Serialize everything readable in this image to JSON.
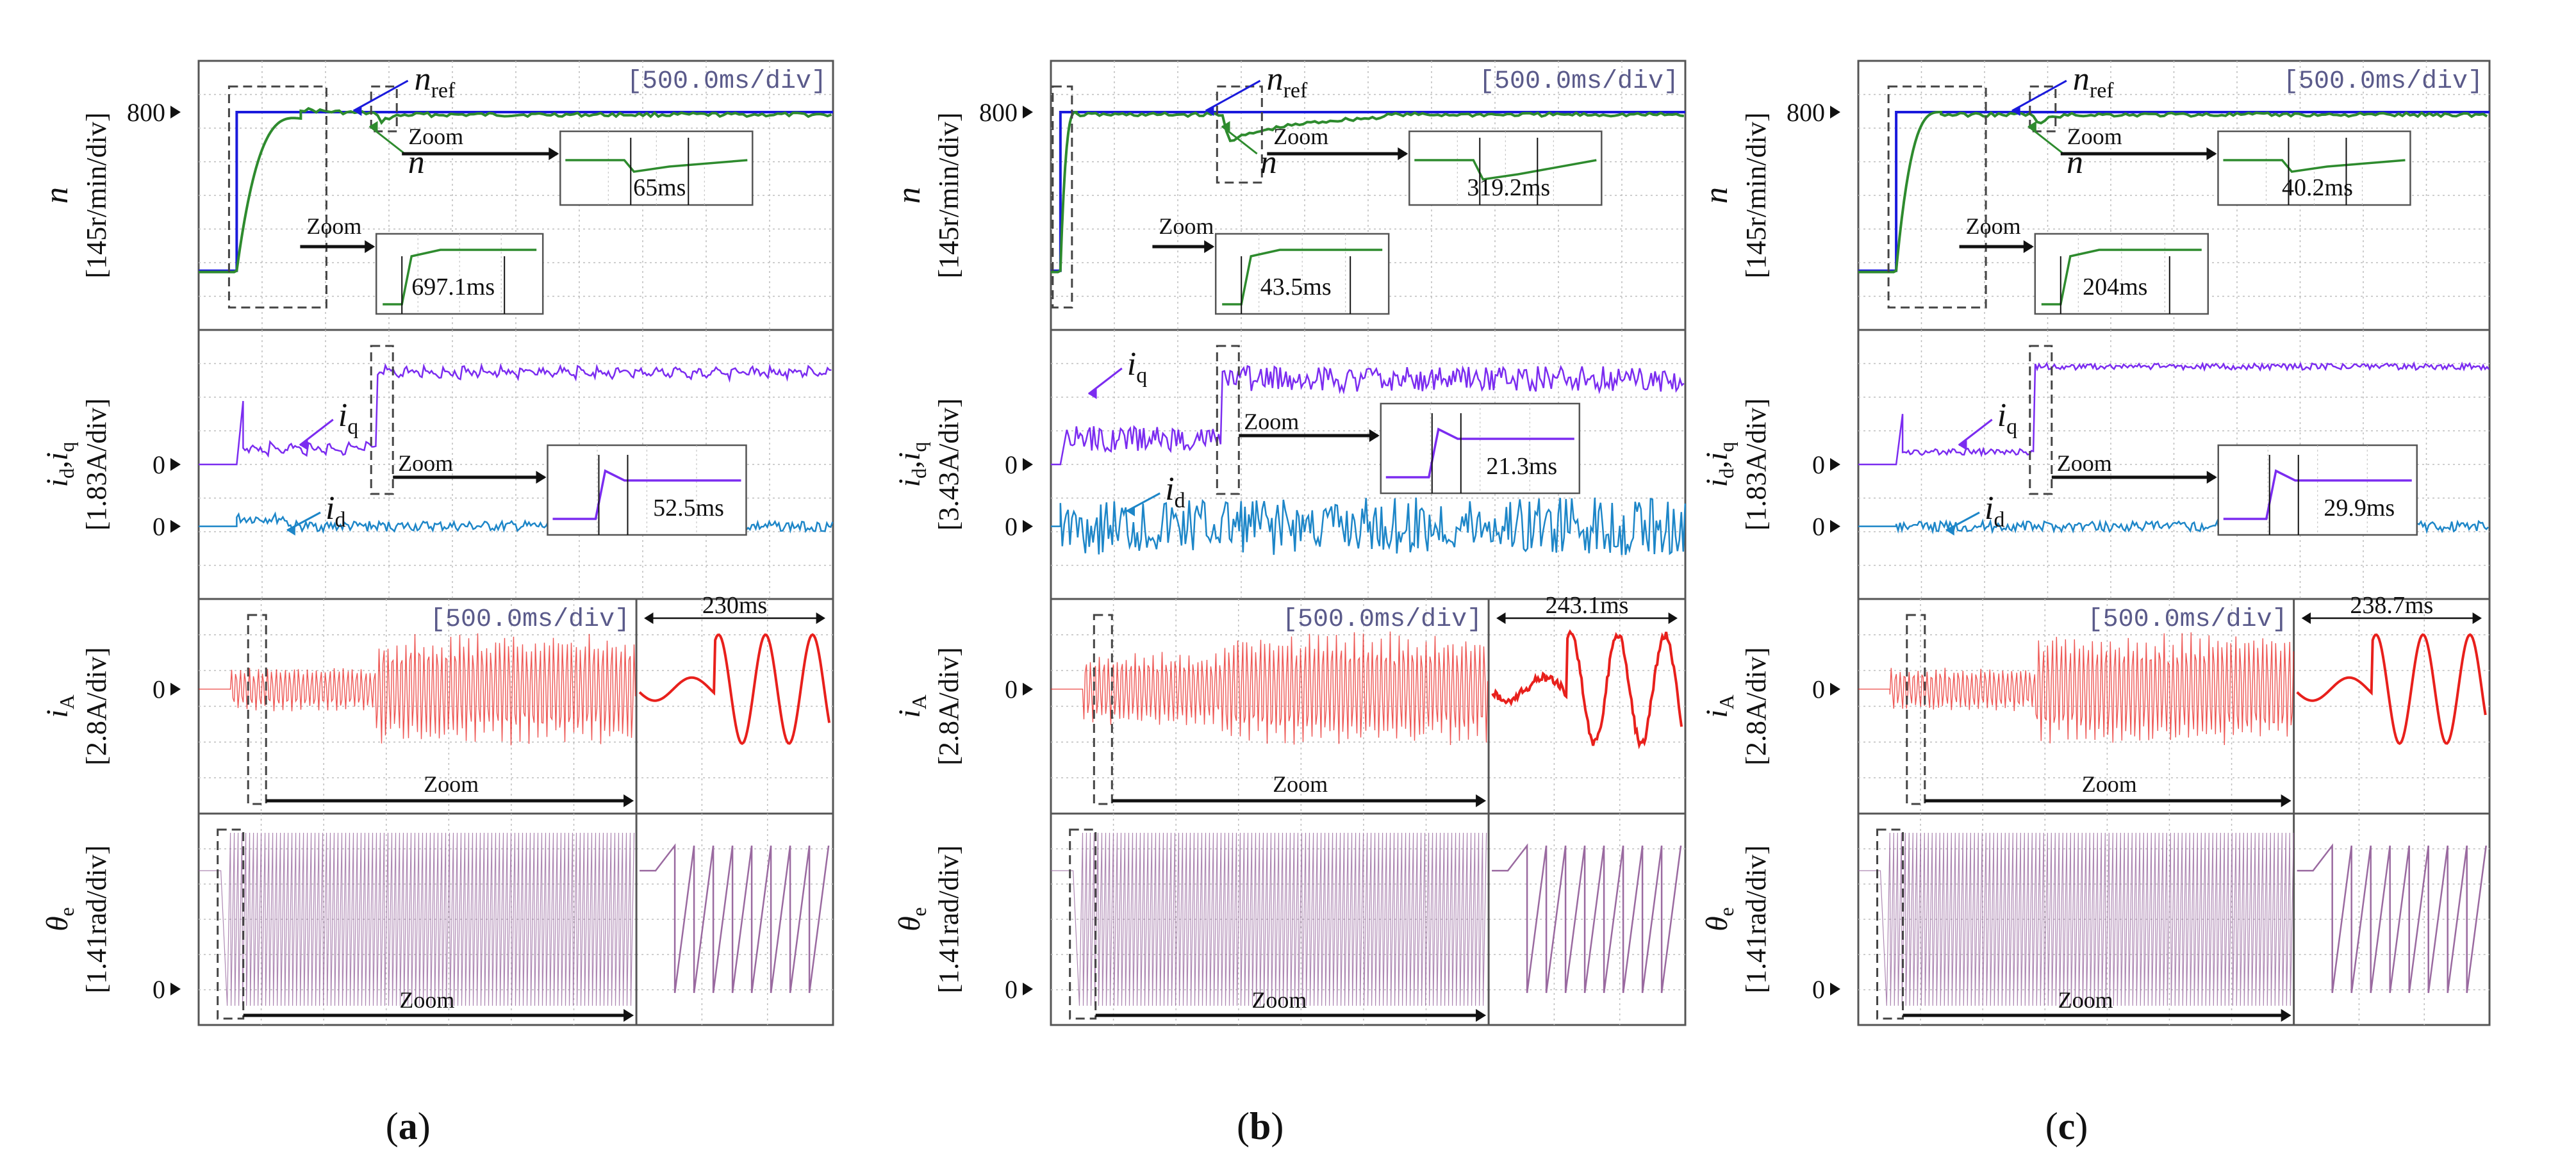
{
  "figure": {
    "colors": {
      "speed": "#2e8b2e",
      "reference": "#1a1adc",
      "iq": "#7b2cf0",
      "id": "#1d86c8",
      "iA": "#e8201c",
      "theta": "#9a6aa0",
      "grid": "#bdbdbd",
      "frame": "#555555",
      "dash": "#444444",
      "text": "#111111"
    },
    "axis_labels": {
      "speed": {
        "sym": "n",
        "unit": "[145r/min/div]"
      },
      "current_dq": {
        "sym_main": "i",
        "sub_d": "d",
        "sub_q": "q",
        "comma": ","
      },
      "iA": {
        "sym": "i",
        "sub": "A",
        "unit": "[2.8A/div]"
      },
      "theta": {
        "sym": "θ",
        "sub": "e",
        "unit": "[1.41rad/div]"
      }
    }
  },
  "chart_data": [
    {
      "panel": "a",
      "caption": {
        "open": "(",
        "letter": "a",
        "close": ")"
      },
      "type": "line",
      "timescale": "[500.0ms/div]",
      "speed": {
        "tick": "800",
        "nref_label": {
          "main": "n",
          "sub": "ref"
        },
        "n_label": "n",
        "step_time_div": 0.6,
        "load_time_div": 2.8,
        "settling_ms": "697.1ms",
        "load_recovery_ms": "65ms",
        "zoom_label": "Zoom",
        "zoom_label_2": "Zoom",
        "overshoot_level": 0.14,
        "dip_level": 0.0
      },
      "currents": {
        "unit": "[1.83A/div]",
        "tick_q": "0",
        "tick_d": "0",
        "iq_label": {
          "main": "i",
          "sub": "q"
        },
        "id_label": {
          "main": "i",
          "sub": "d"
        },
        "response_ms": "52.5ms",
        "zoom_label": "Zoom",
        "iq_before": 0.25,
        "iq_after": 1.45
      },
      "iA": {
        "tick": "0",
        "timescale": "[500.0ms/div]",
        "zoom_time": "230ms",
        "zoom_label": "Zoom"
      },
      "theta": {
        "tick": "0",
        "zoom_label": "Zoom"
      }
    },
    {
      "panel": "b",
      "caption": {
        "open": "(",
        "letter": "b",
        "close": ")"
      },
      "type": "line",
      "timescale": "[500.0ms/div]",
      "speed": {
        "tick": "800",
        "nref_label": {
          "main": "n",
          "sub": "ref"
        },
        "n_label": "n",
        "step_time_div": 0.15,
        "load_time_div": 2.7,
        "settling_ms": "43.5ms",
        "load_recovery_ms": "319.2ms",
        "zoom_label": "Zoom",
        "zoom_label_2": "Zoom",
        "overshoot_level": 0.0,
        "dip_level": -0.45
      },
      "currents": {
        "unit": "[3.43A/div]",
        "tick_q": "0",
        "tick_d": "0",
        "iq_label": {
          "main": "i",
          "sub": "q"
        },
        "id_label": {
          "main": "i",
          "sub": "d"
        },
        "response_ms": "21.3ms",
        "zoom_label": "Zoom",
        "iq_before": 0.4,
        "iq_after": 1.35
      },
      "iA": {
        "tick": "0",
        "timescale": "[500.0ms/div]",
        "zoom_time": "243.1ms",
        "zoom_label": "Zoom"
      },
      "theta": {
        "tick": "0",
        "zoom_label": "Zoom"
      }
    },
    {
      "panel": "c",
      "caption": {
        "open": "(",
        "letter": "c",
        "close": ")"
      },
      "type": "line",
      "timescale": "[500.0ms/div]",
      "speed": {
        "tick": "800",
        "nref_label": {
          "main": "n",
          "sub": "ref"
        },
        "n_label": "n",
        "step_time_div": 0.6,
        "load_time_div": 2.8,
        "settling_ms": "204ms",
        "load_recovery_ms": "40.2ms",
        "zoom_label": "Zoom",
        "zoom_label_2": "Zoom",
        "overshoot_level": 0.0,
        "dip_level": -0.35
      },
      "currents": {
        "unit": "[1.83A/div]",
        "tick_q": "0",
        "tick_d": "0",
        "iq_label": {
          "main": "i",
          "sub": "q"
        },
        "id_label": {
          "main": "i",
          "sub": "d"
        },
        "response_ms": "29.9ms",
        "zoom_label": "Zoom",
        "iq_before": 0.2,
        "iq_after": 1.55
      },
      "iA": {
        "tick": "0",
        "timescale": "[500.0ms/div]",
        "zoom_time": "238.7ms",
        "zoom_label": "Zoom"
      },
      "theta": {
        "tick": "0",
        "zoom_label": "Zoom"
      }
    }
  ]
}
